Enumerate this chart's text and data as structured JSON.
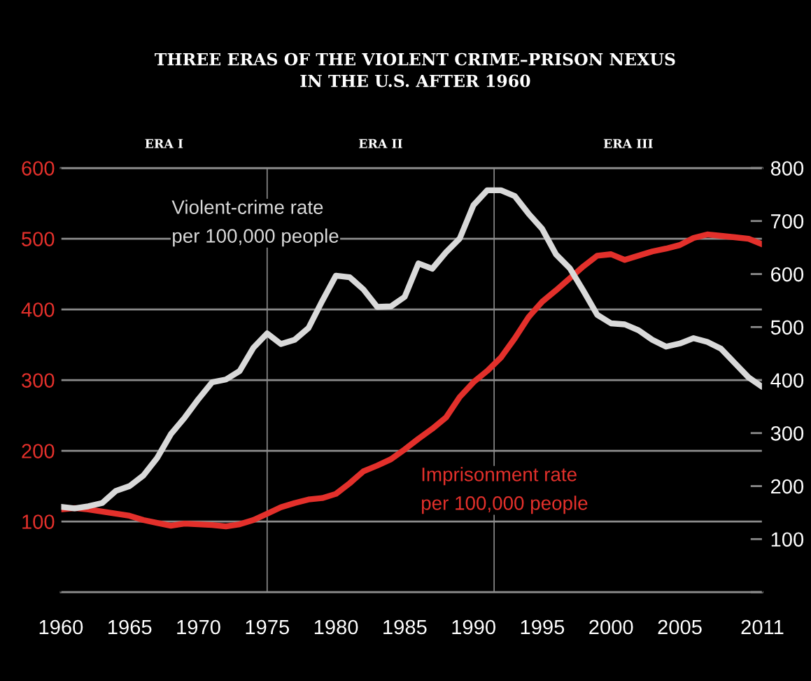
{
  "chart_data": {
    "type": "line",
    "title": "THREE ERAS OF THE VIOLENT CRIME–PRISON NEXUS\nIN THE U.S. AFTER 1960",
    "annotations": [
      "ERA I",
      "ERA II",
      "ERA III"
    ],
    "x": [
      1960,
      1961,
      1962,
      1963,
      1964,
      1965,
      1966,
      1967,
      1968,
      1969,
      1970,
      1971,
      1972,
      1973,
      1974,
      1975,
      1976,
      1977,
      1978,
      1979,
      1980,
      1981,
      1982,
      1983,
      1984,
      1985,
      1986,
      1987,
      1988,
      1989,
      1990,
      1991,
      1992,
      1993,
      1994,
      1995,
      1996,
      1997,
      1998,
      1999,
      2000,
      2001,
      2002,
      2003,
      2004,
      2005,
      2006,
      2007,
      2008,
      2009,
      2010,
      2011
    ],
    "series": [
      {
        "name": "Violent-crime rate\nper 100,000 people",
        "color": "#d9d9d9",
        "axis": "y2",
        "values": [
          161,
          158,
          162,
          168,
          191,
          200,
          220,
          253,
          298,
          329,
          364,
          396,
          401,
          417,
          461,
          488,
          468,
          476,
          498,
          549,
          597,
          594,
          571,
          538,
          539,
          557,
          620,
          610,
          641,
          667,
          730,
          758,
          758,
          747,
          714,
          685,
          637,
          611,
          568,
          523,
          507,
          505,
          494,
          476,
          463,
          469,
          479,
          472,
          459,
          432,
          405,
          387
        ]
      },
      {
        "name": "Imprisonment rate\nper 100,000 people",
        "color": "#e3302b",
        "axis": "y",
        "values": [
          117,
          119,
          117,
          114,
          111,
          108,
          102,
          98,
          94,
          97,
          96,
          95,
          93,
          96,
          102,
          111,
          120,
          126,
          131,
          133,
          139,
          154,
          171,
          179,
          188,
          202,
          217,
          231,
          247,
          276,
          297,
          313,
          332,
          359,
          389,
          411,
          427,
          444,
          461,
          476,
          478,
          470,
          476,
          482,
          486,
          491,
          501,
          506,
          504,
          502,
          500,
          492
        ]
      }
    ],
    "xlim": [
      1960,
      2011
    ],
    "xticks": [
      1960,
      1965,
      1970,
      1975,
      1980,
      1985,
      1990,
      1995,
      2000,
      2005,
      2011
    ],
    "ylim": [
      0,
      600
    ],
    "yticks": [
      {
        "value": 0,
        "label": null
      },
      100,
      200,
      300,
      400,
      500,
      600
    ],
    "y2lim": [
      0,
      800
    ],
    "y2ticks": [
      {
        "value": 0,
        "label": null
      },
      100,
      200,
      300,
      400,
      500,
      600,
      700,
      800
    ],
    "grid": "y",
    "legend": false,
    "line_style": "solid",
    "ref_lines": [
      {
        "axis": "x",
        "value": 1975,
        "label": null,
        "color": "#8c8c8c"
      },
      {
        "axis": "x",
        "value": 1991.5,
        "label": null,
        "color": "#8c8c8c"
      }
    ]
  }
}
